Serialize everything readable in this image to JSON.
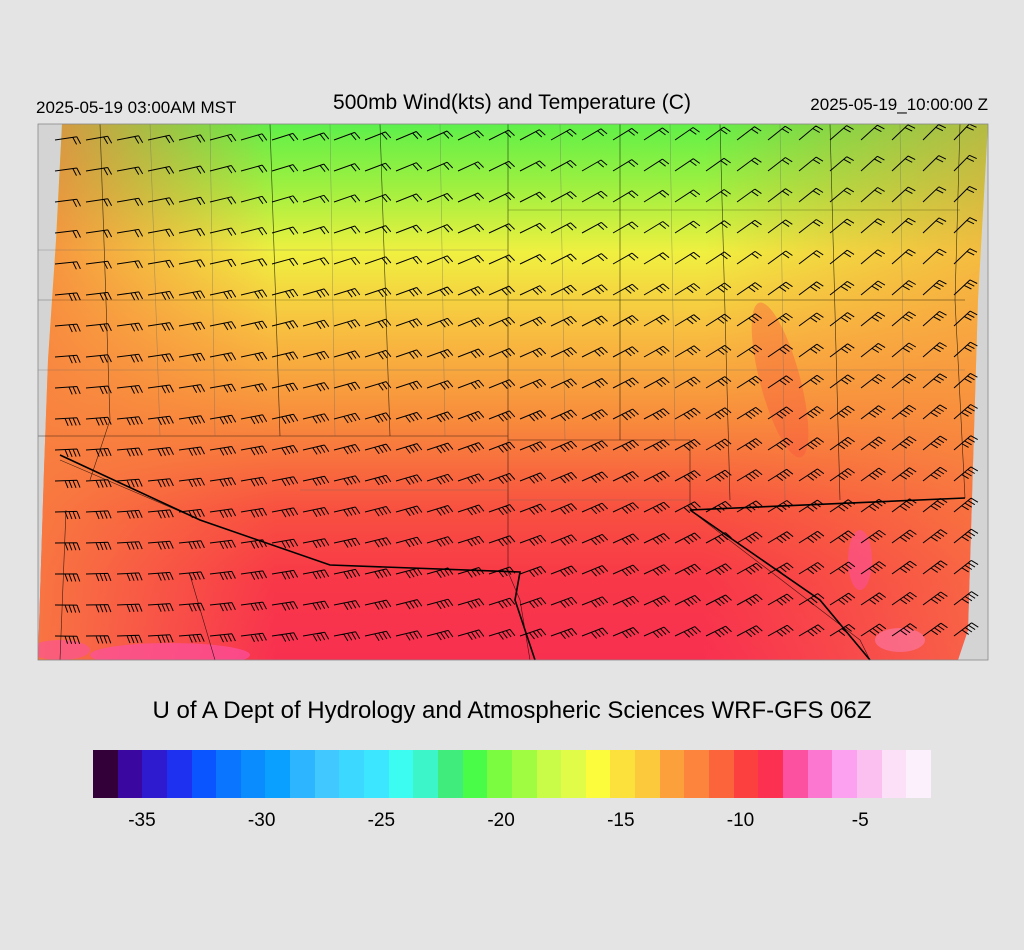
{
  "header": {
    "local_time": "2025-05-19 03:00AM MST",
    "title": "500mb Wind(kts) and Temperature (C)",
    "valid_time": "2025-05-19_10:00:00 Z"
  },
  "credit": "U of A Dept of Hydrology and Atmospheric Sciences WRF-GFS 06Z",
  "map": {
    "variable": "500mb temperature",
    "units": "C",
    "overlay": "wind barbs (kts)",
    "nodata_color": "#d4d4d4",
    "line_color": "#000000"
  },
  "colorbar": {
    "colors": [
      "#33003a",
      "#3a07a0",
      "#2e1bd0",
      "#1e30f0",
      "#0a55ff",
      "#0a75ff",
      "#0a8cff",
      "#0aa0ff",
      "#2eb5ff",
      "#40c8ff",
      "#3cd8ff",
      "#3ce6ff",
      "#3cfcf2",
      "#3cf5c8",
      "#40ec7c",
      "#48fc48",
      "#7cfc40",
      "#a0fc40",
      "#c8fc48",
      "#e1fc48",
      "#fcfc3c",
      "#fce13c",
      "#fcc83c",
      "#fca03c",
      "#fc843c",
      "#fc643c",
      "#fc4040",
      "#fc3050",
      "#fc50a0",
      "#fc78d0",
      "#fca0f0",
      "#fcc0f0",
      "#fce0f8",
      "#fcf0fc"
    ],
    "ticks": [
      {
        "label": "-35",
        "value": -35
      },
      {
        "label": "-30",
        "value": -30
      },
      {
        "label": "-25",
        "value": -25
      },
      {
        "label": "-20",
        "value": -20
      },
      {
        "label": "-15",
        "value": -15
      },
      {
        "label": "-10",
        "value": -10
      },
      {
        "label": "-5",
        "value": -5
      }
    ]
  }
}
